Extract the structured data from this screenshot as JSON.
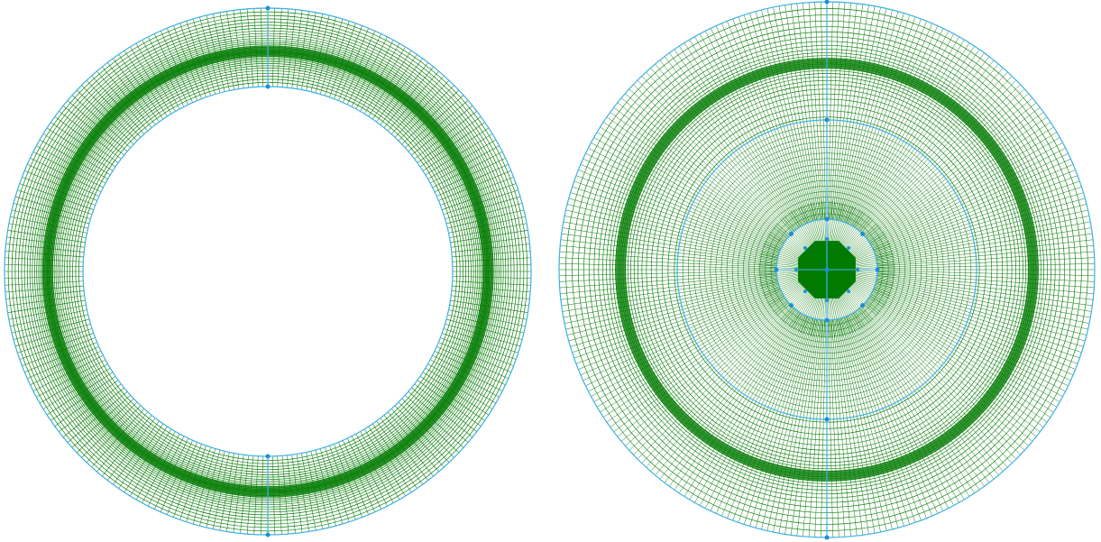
{
  "colors": {
    "background": "#ffffff",
    "mesh": "#0a7d0a",
    "mesh_dense": "#007a00",
    "boundary": "#3fb2e6",
    "node": "#1c8fd8"
  },
  "panels": [
    {
      "name": "annular-mesh",
      "kind": "annulus",
      "radial_layers": 34,
      "angular_divisions": 240,
      "dense_band": true,
      "split_line": "vertical"
    },
    {
      "name": "disc-mesh",
      "kind": "disc-with-core",
      "radial_layers": 46,
      "angular_divisions": 280,
      "dense_band": true,
      "core_shape": "octagon",
      "split_line": "vertical"
    }
  ]
}
